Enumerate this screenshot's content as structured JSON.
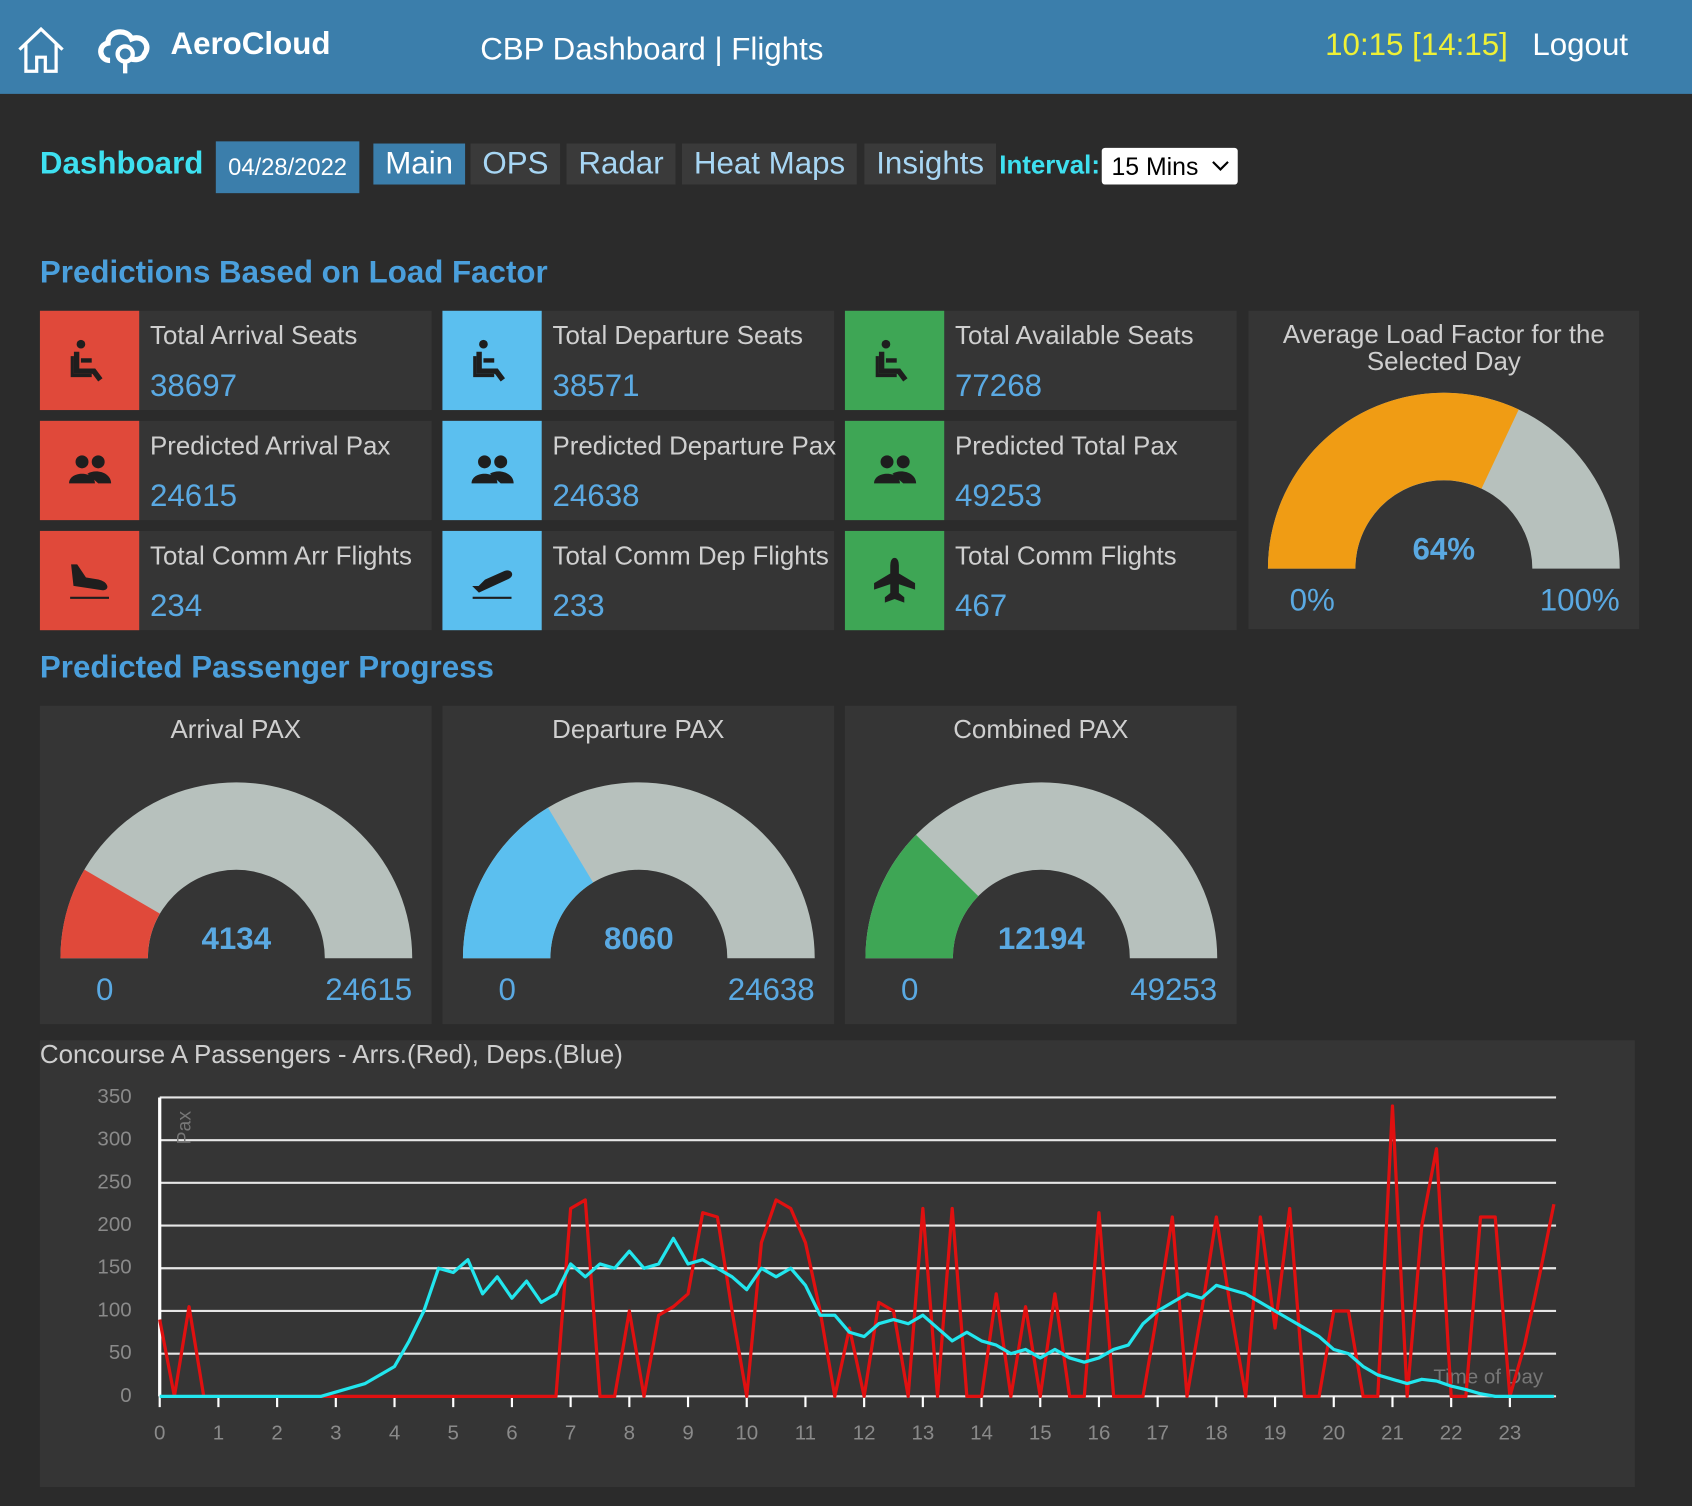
{
  "header": {
    "brand": "AeroCloud",
    "title": "CBP Dashboard | Flights",
    "time": "10:15 [14:15]",
    "logout": "Logout"
  },
  "toolbar": {
    "label": "Dashboard",
    "date": "04/28/2022",
    "tabs": [
      "Main",
      "OPS",
      "Radar",
      "Heat Maps",
      "Insights"
    ],
    "active_tab": 0,
    "interval_label": "Interval:",
    "interval": "15 Mins"
  },
  "predictions": {
    "title": "Predictions Based on Load Factor",
    "cards": [
      {
        "label": "Total Arrival Seats",
        "value": 38697,
        "color": "#e0493a"
      },
      {
        "label": "Total Departure Seats",
        "value": 38571,
        "color": "#5bbfef"
      },
      {
        "label": "Total Available Seats",
        "value": 77268,
        "color": "#3ea655"
      },
      {
        "label": "Predicted Arrival Pax",
        "value": 24615,
        "color": "#e0493a"
      },
      {
        "label": "Predicted Departure Pax",
        "value": 24638,
        "color": "#5bbfef"
      },
      {
        "label": "Predicted Total Pax",
        "value": 49253,
        "color": "#3ea655"
      },
      {
        "label": "Total Comm Arr Flights",
        "value": 234,
        "color": "#e0493a"
      },
      {
        "label": "Total Comm Dep Flights",
        "value": 233,
        "color": "#5bbfef"
      },
      {
        "label": "Total Comm Flights",
        "value": 467,
        "color": "#3ea655"
      }
    ],
    "load_factor": {
      "title": "Average Load Factor for the Selected Day",
      "value": 64,
      "value_label": "64%",
      "min": 0,
      "min_label": "0%",
      "max": 100,
      "max_label": "100%",
      "color": "#f09c14"
    }
  },
  "progress": {
    "title": "Predicted Passenger Progress",
    "gauges": [
      {
        "title": "Arrival PAX",
        "value": 4134,
        "min": 0,
        "max": 24615,
        "color": "#e0493a"
      },
      {
        "title": "Departure PAX",
        "value": 8060,
        "min": 0,
        "max": 24638,
        "color": "#5bbfef"
      },
      {
        "title": "Combined PAX",
        "value": 12194,
        "min": 0,
        "max": 49253,
        "color": "#3ea655"
      }
    ]
  },
  "chart_data": {
    "type": "line",
    "title": "Concourse A Passengers - Arrs.(Red), Deps.(Blue)",
    "y_label": "Pax",
    "x_label": "Time of Day",
    "x": [
      0,
      0.25,
      0.5,
      0.75,
      1,
      1.25,
      1.5,
      1.75,
      2,
      2.25,
      2.5,
      2.75,
      3,
      3.25,
      3.5,
      3.75,
      4,
      4.25,
      4.5,
      4.75,
      5,
      5.25,
      5.5,
      5.75,
      6,
      6.25,
      6.5,
      6.75,
      7,
      7.25,
      7.5,
      7.75,
      8,
      8.25,
      8.5,
      8.75,
      9,
      9.25,
      9.5,
      9.75,
      10,
      10.25,
      10.5,
      10.75,
      11,
      11.25,
      11.5,
      11.75,
      12,
      12.25,
      12.5,
      12.75,
      13,
      13.25,
      13.5,
      13.75,
      14,
      14.25,
      14.5,
      14.75,
      15,
      15.25,
      15.5,
      15.75,
      16,
      16.25,
      16.5,
      16.75,
      17,
      17.25,
      17.5,
      17.75,
      18,
      18.25,
      18.5,
      18.75,
      19,
      19.25,
      19.5,
      19.75,
      20,
      20.25,
      20.5,
      20.75,
      21,
      21.25,
      21.5,
      21.75,
      22,
      22.25,
      22.5,
      22.75,
      23,
      23.25,
      23.5,
      23.75
    ],
    "series": [
      {
        "name": "Arrs.",
        "color": "#e01010",
        "values": [
          90,
          0,
          105,
          0,
          0,
          0,
          0,
          0,
          0,
          0,
          0,
          0,
          0,
          0,
          0,
          0,
          0,
          0,
          0,
          0,
          0,
          0,
          0,
          0,
          0,
          0,
          0,
          0,
          220,
          230,
          0,
          0,
          100,
          0,
          95,
          105,
          120,
          215,
          210,
          100,
          0,
          180,
          230,
          220,
          180,
          100,
          0,
          80,
          0,
          110,
          100,
          0,
          220,
          0,
          220,
          0,
          0,
          120,
          0,
          105,
          0,
          120,
          0,
          0,
          215,
          0,
          0,
          0,
          100,
          210,
          0,
          100,
          210,
          100,
          0,
          210,
          80,
          220,
          0,
          0,
          100,
          100,
          0,
          0,
          340,
          0,
          200,
          290,
          0,
          0,
          210,
          210,
          0,
          60,
          140,
          225
        ]
      },
      {
        "name": "Deps.",
        "color": "#22e6ee",
        "values": [
          0,
          0,
          0,
          0,
          0,
          0,
          0,
          0,
          0,
          0,
          0,
          0,
          5,
          10,
          15,
          25,
          35,
          65,
          100,
          150,
          145,
          160,
          120,
          140,
          115,
          135,
          110,
          120,
          155,
          140,
          155,
          150,
          170,
          150,
          155,
          185,
          155,
          160,
          150,
          140,
          125,
          150,
          140,
          150,
          130,
          95,
          95,
          75,
          70,
          85,
          90,
          85,
          95,
          80,
          65,
          75,
          65,
          60,
          50,
          55,
          45,
          55,
          45,
          40,
          45,
          55,
          60,
          85,
          100,
          110,
          120,
          115,
          130,
          125,
          120,
          110,
          100,
          90,
          80,
          70,
          55,
          50,
          35,
          25,
          20,
          15,
          20,
          18,
          12,
          8,
          3,
          0,
          0,
          0,
          0,
          0
        ]
      }
    ],
    "xlim": [
      0,
      23.75
    ],
    "xticks": [
      0,
      1,
      2,
      3,
      4,
      5,
      6,
      7,
      8,
      9,
      10,
      11,
      12,
      13,
      14,
      15,
      16,
      17,
      18,
      19,
      20,
      21,
      22,
      23
    ],
    "ylim": [
      0,
      350
    ],
    "yticks": [
      0,
      50,
      100,
      150,
      200,
      250,
      300,
      350
    ],
    "grid": true
  }
}
